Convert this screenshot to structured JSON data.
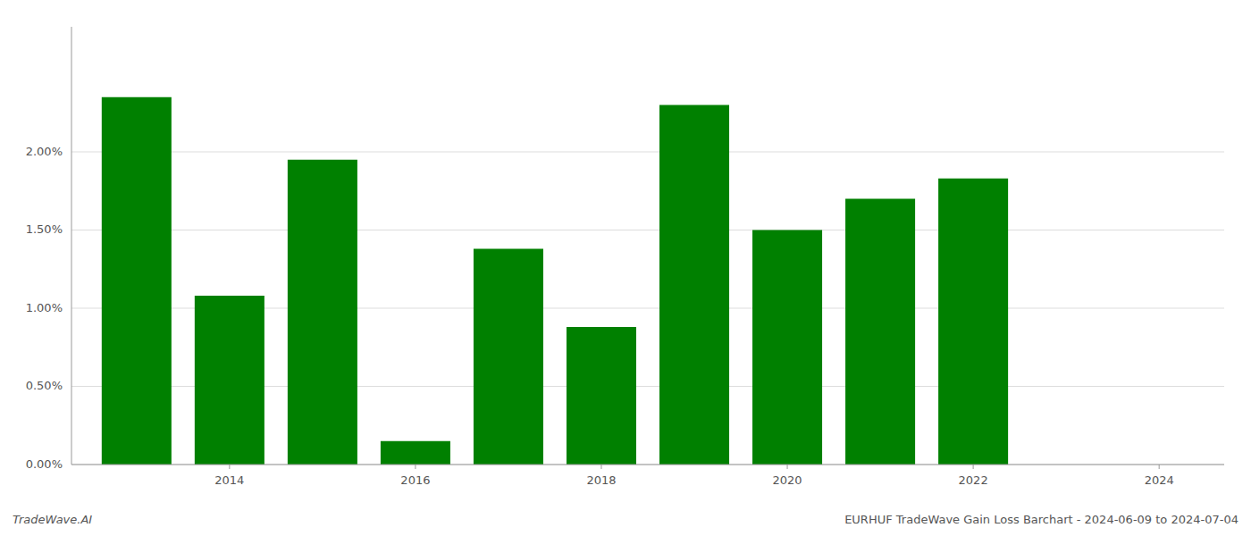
{
  "chart_data": {
    "type": "bar",
    "x": [
      2013,
      2014,
      2015,
      2016,
      2017,
      2018,
      2019,
      2020,
      2021,
      2022
    ],
    "values": [
      0.0235,
      0.0108,
      0.0195,
      0.0015,
      0.0138,
      0.0088,
      0.023,
      0.015,
      0.017,
      0.0183
    ],
    "color": "#008000",
    "xlim": [
      2012.3,
      2024.7
    ],
    "xticks": [
      2014,
      2016,
      2018,
      2020,
      2022,
      2024
    ],
    "ylim": [
      0,
      0.028
    ],
    "yticks": [
      {
        "value": 0.0,
        "label": "0.00%"
      },
      {
        "value": 0.005,
        "label": "0.50%"
      },
      {
        "value": 0.01,
        "label": "1.00%"
      },
      {
        "value": 0.015,
        "label": "1.50%"
      },
      {
        "value": 0.02,
        "label": "2.00%"
      }
    ],
    "grid": true,
    "annotations": [
      "TradeWave.AI",
      "EURHUF TradeWave Gain Loss Barchart - 2024-06-09 to 2024-07-04"
    ]
  }
}
